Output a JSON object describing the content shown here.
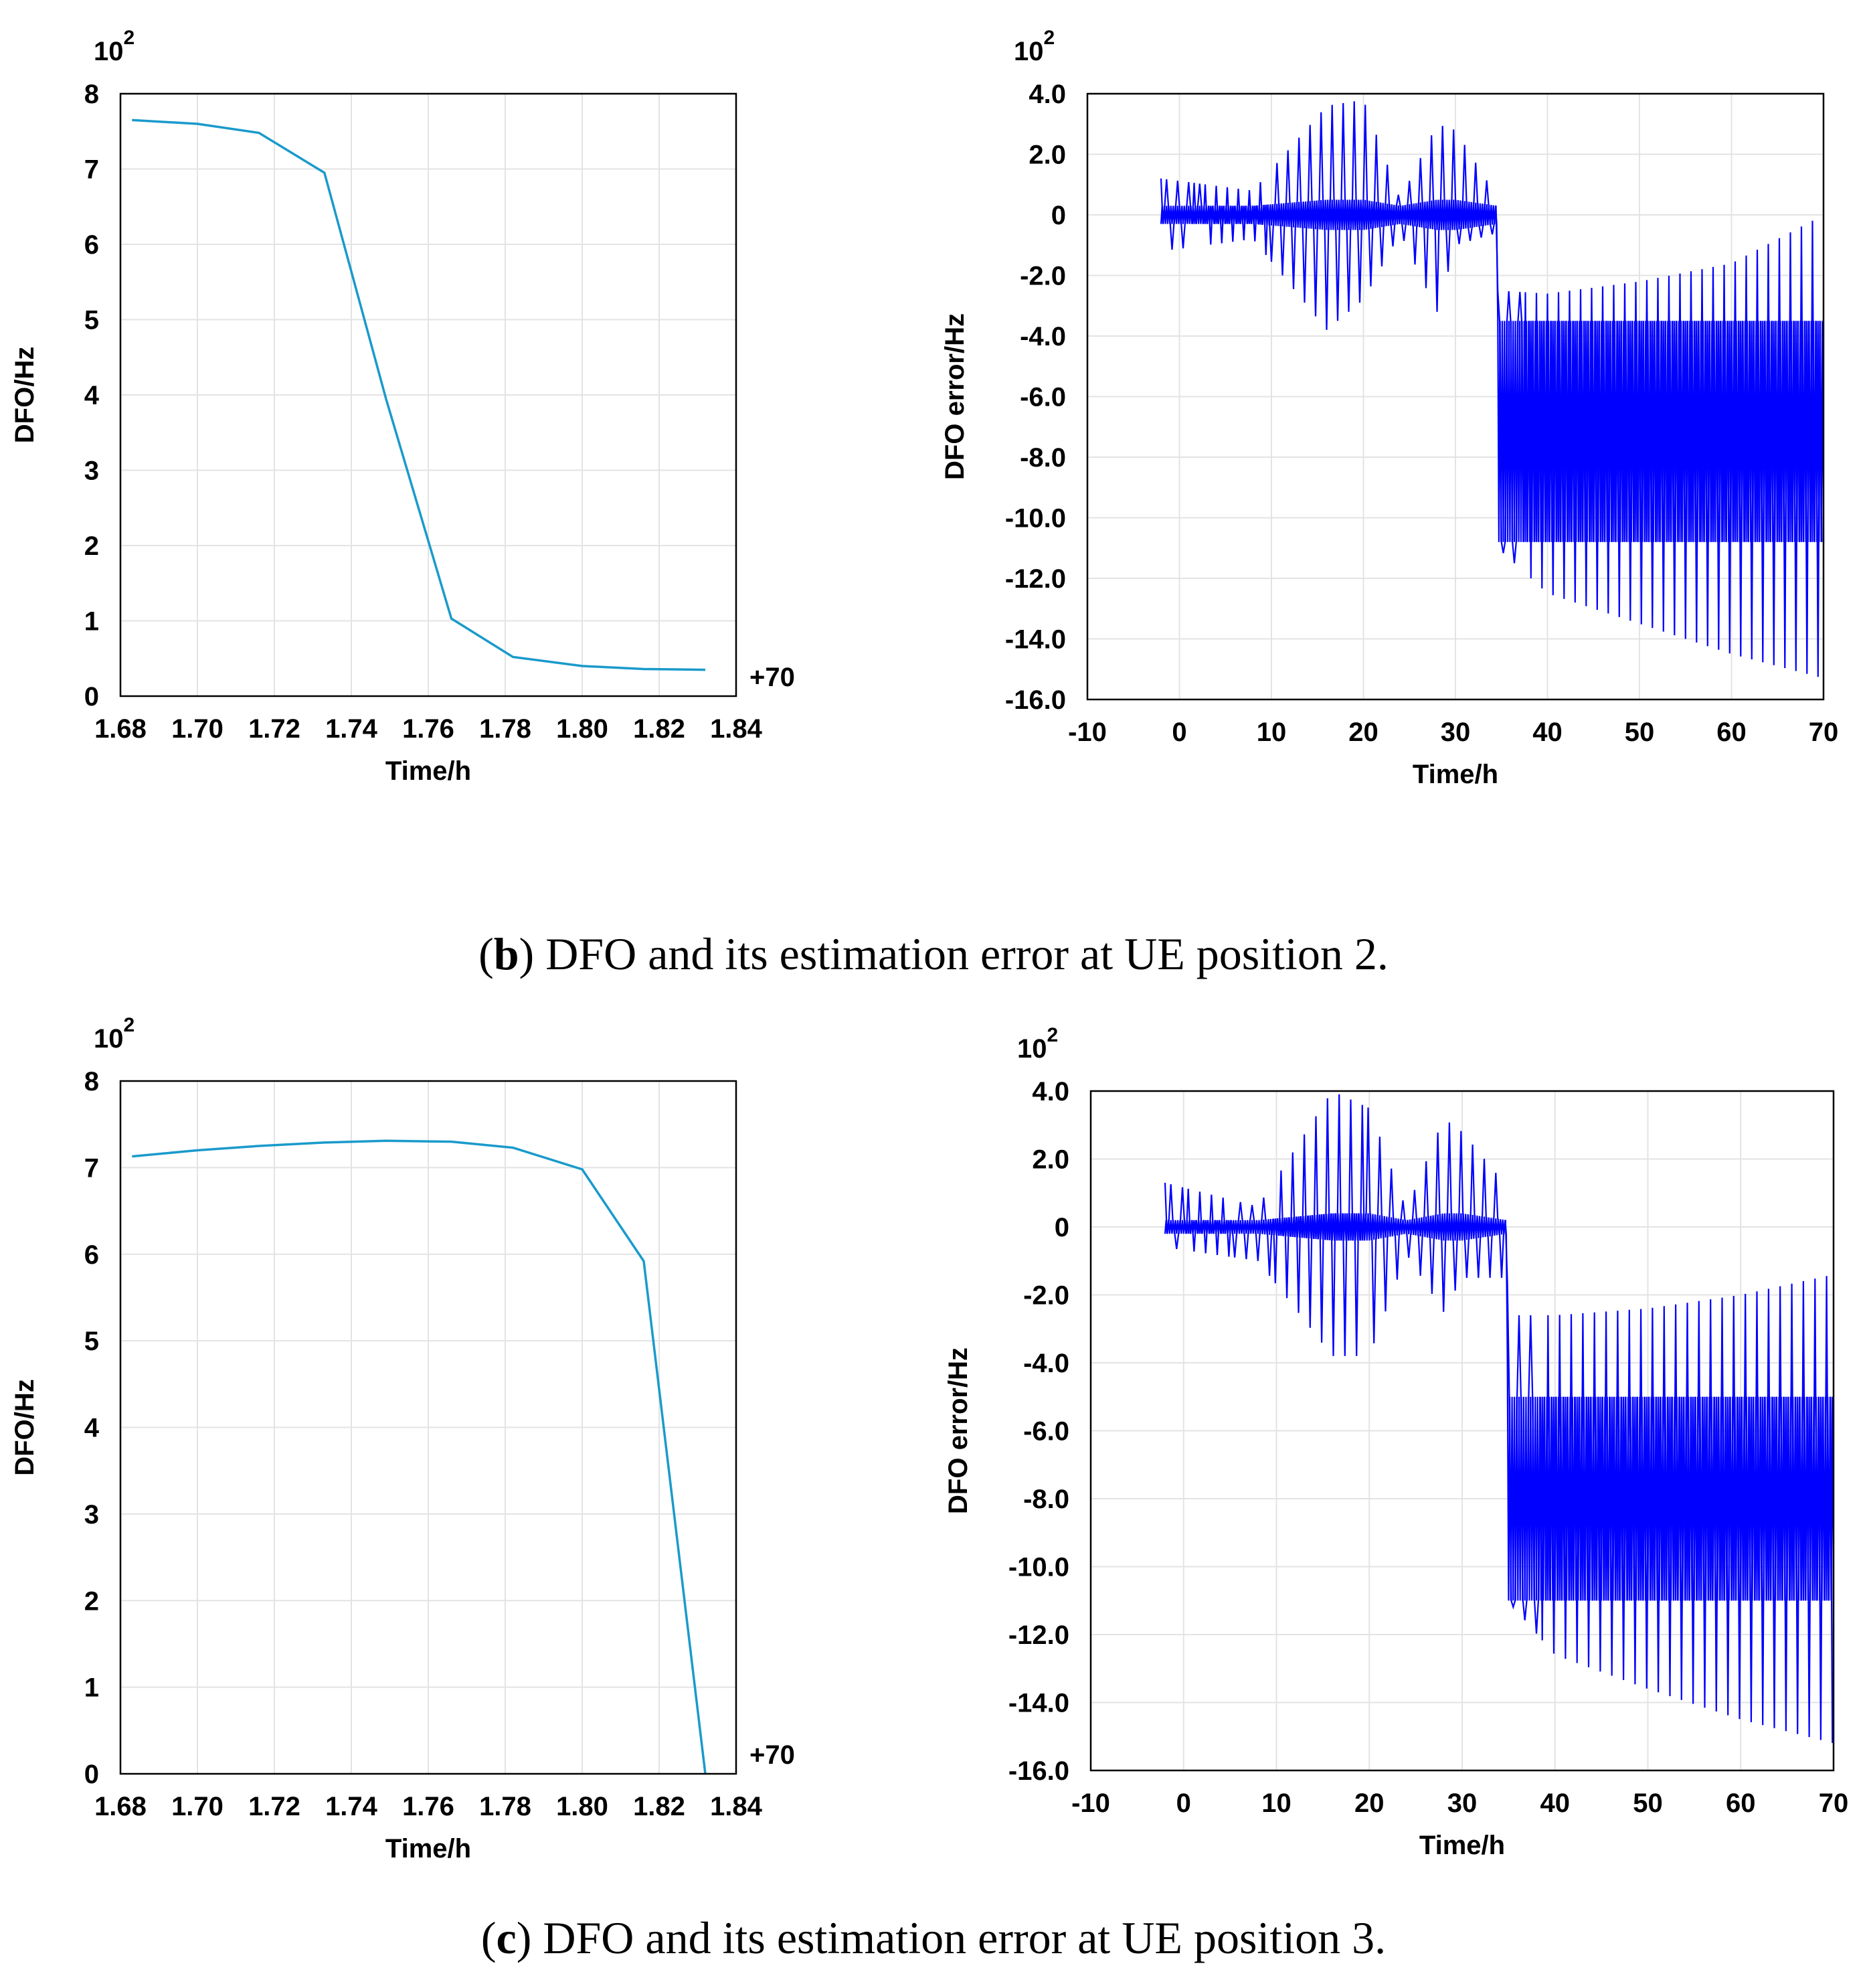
{
  "figure": {
    "captions": [
      {
        "open": "(",
        "letter": "b",
        "rest": ") DFO and its estimation error at UE position 2."
      },
      {
        "open": "(",
        "letter": "c",
        "rest": ") DFO and its estimation error at UE position 3."
      }
    ]
  },
  "chart_data": [
    {
      "id": "b-left",
      "type": "line",
      "xlabel": "Time/h",
      "ylabel": "DFO/Hz",
      "scale_label": {
        "base": "10",
        "exp": "2"
      },
      "offset_label": "+70",
      "xlim": [
        1.68,
        1.84
      ],
      "ylim": [
        0,
        8
      ],
      "xticks": [
        1.68,
        1.7,
        1.72,
        1.74,
        1.76,
        1.78,
        1.8,
        1.82,
        1.84
      ],
      "xtick_labels": [
        "1.68",
        "1.70",
        "1.72",
        "1.74",
        "1.76",
        "1.78",
        "1.80",
        "1.82",
        "1.84"
      ],
      "yticks": [
        0,
        1,
        2,
        3,
        4,
        5,
        6,
        7,
        8
      ],
      "ytick_labels": [
        "0",
        "1",
        "2",
        "3",
        "4",
        "5",
        "6",
        "7",
        "8"
      ],
      "grid": true,
      "color": "#1a9acb",
      "series": [
        {
          "name": "DFO",
          "x": [
            1.683,
            1.7,
            1.716,
            1.733,
            1.749,
            1.766,
            1.782,
            1.8,
            1.816,
            1.832
          ],
          "y": [
            7.65,
            7.6,
            7.48,
            6.95,
            3.95,
            1.03,
            0.52,
            0.4,
            0.36,
            0.35
          ]
        }
      ]
    },
    {
      "id": "b-right",
      "type": "line",
      "xlabel": "Time/h",
      "ylabel": "DFO error/Hz",
      "scale_label": {
        "base": "10",
        "exp": "2"
      },
      "xlim": [
        -10,
        70
      ],
      "ylim": [
        -16,
        4
      ],
      "xticks": [
        -10,
        0,
        10,
        20,
        30,
        40,
        50,
        60,
        70
      ],
      "xtick_labels": [
        "-10",
        "0",
        "10",
        "20",
        "30",
        "40",
        "50",
        "60",
        "70"
      ],
      "yticks": [
        4,
        2,
        0,
        -2,
        -4,
        -6,
        -8,
        -10,
        -12,
        -14,
        -16
      ],
      "ytick_labels": [
        "4.0",
        "2.0",
        "0",
        "-2.0",
        "-4.0",
        "-6.0",
        "-8.0",
        "-10.0",
        "-12.0",
        "-14.0",
        "-16.0"
      ],
      "grid": true,
      "color": "#0000ff",
      "series": [
        {
          "name": "DFO error",
          "pattern": "oscillating",
          "x_range": [
            -2,
            70
          ],
          "switch_x": 34.5,
          "period": 1.2,
          "envelope_x": [
            -2,
            8,
            16,
            20,
            24,
            28,
            30,
            34.5,
            34.6,
            40,
            50,
            60,
            70
          ],
          "upper": [
            1.2,
            0.8,
            3.6,
            3.8,
            0.5,
            3.0,
            2.8,
            0.6,
            -2.5,
            -2.6,
            -2.2,
            -1.6,
            0.0
          ],
          "lower": [
            -1.2,
            -0.8,
            -3.8,
            -2.8,
            -0.6,
            -3.2,
            -1.0,
            -0.6,
            -11.0,
            -12.5,
            -13.5,
            -14.5,
            -15.3
          ],
          "band_top": [
            0.3,
            0.3,
            0.5,
            0.5,
            0.3,
            0.5,
            0.5,
            0.3,
            -3.5,
            -3.5,
            -3.5,
            -3.5,
            -3.5
          ],
          "band_bottom": [
            -0.3,
            -0.3,
            -0.5,
            -0.5,
            -0.3,
            -0.5,
            -0.5,
            -0.3,
            -10.8,
            -10.8,
            -10.8,
            -10.8,
            -10.8
          ]
        }
      ]
    },
    {
      "id": "c-left",
      "type": "line",
      "xlabel": "Time/h",
      "ylabel": "DFO/Hz",
      "scale_label": {
        "base": "10",
        "exp": "2"
      },
      "offset_label": "+70",
      "xlim": [
        1.68,
        1.84
      ],
      "ylim": [
        0,
        8
      ],
      "xticks": [
        1.68,
        1.7,
        1.72,
        1.74,
        1.76,
        1.78,
        1.8,
        1.82,
        1.84
      ],
      "xtick_labels": [
        "1.68",
        "1.70",
        "1.72",
        "1.74",
        "1.76",
        "1.78",
        "1.80",
        "1.82",
        "1.84"
      ],
      "yticks": [
        0,
        1,
        2,
        3,
        4,
        5,
        6,
        7,
        8
      ],
      "ytick_labels": [
        "0",
        "1",
        "2",
        "3",
        "4",
        "5",
        "6",
        "7",
        "8"
      ],
      "grid": true,
      "color": "#1a9acb",
      "series": [
        {
          "name": "DFO",
          "x": [
            1.683,
            1.7,
            1.716,
            1.733,
            1.749,
            1.766,
            1.782,
            1.8,
            1.816,
            1.832
          ],
          "y": [
            7.13,
            7.2,
            7.25,
            7.29,
            7.31,
            7.3,
            7.23,
            6.98,
            5.92,
            0.0
          ]
        }
      ]
    },
    {
      "id": "c-right",
      "type": "line",
      "xlabel": "Time/h",
      "ylabel": "DFO error/Hz",
      "scale_label": {
        "base": "10",
        "exp": "2"
      },
      "xlim": [
        -10,
        70
      ],
      "ylim": [
        -16,
        4
      ],
      "xticks": [
        -10,
        0,
        10,
        20,
        30,
        40,
        50,
        60,
        70
      ],
      "xtick_labels": [
        "-10",
        "0",
        "10",
        "20",
        "30",
        "40",
        "50",
        "60",
        "70"
      ],
      "yticks": [
        4,
        2,
        0,
        -2,
        -4,
        -6,
        -8,
        -10,
        -12,
        -14,
        -16
      ],
      "ytick_labels": [
        "4.0",
        "2.0",
        "0",
        "-2.0",
        "-4.0",
        "-6.0",
        "-8.0",
        "-10.0",
        "-12.0",
        "-14.0",
        "-16.0"
      ],
      "grid": true,
      "color": "#0000ff",
      "series": [
        {
          "name": "DFO error",
          "pattern": "oscillating",
          "x_range": [
            -2,
            70
          ],
          "switch_x": 34.8,
          "period": 1.25,
          "envelope_x": [
            -2,
            8,
            16,
            20,
            24,
            28,
            30,
            34.8,
            34.9,
            40,
            50,
            60,
            70
          ],
          "upper": [
            1.3,
            0.6,
            4.0,
            3.5,
            0.5,
            3.2,
            2.8,
            1.2,
            -2.6,
            -2.6,
            -2.4,
            -2.0,
            -1.4
          ],
          "lower": [
            -0.6,
            -1.0,
            -3.8,
            -3.8,
            -0.8,
            -2.5,
            -1.5,
            -1.5,
            -11.0,
            -12.6,
            -13.6,
            -14.5,
            -15.2
          ],
          "band_top": [
            0.2,
            0.2,
            0.4,
            0.4,
            0.2,
            0.4,
            0.4,
            0.2,
            -5.0,
            -5.0,
            -5.0,
            -5.0,
            -5.0
          ],
          "band_bottom": [
            -0.2,
            -0.2,
            -0.4,
            -0.4,
            -0.2,
            -0.4,
            -0.4,
            -0.2,
            -11.0,
            -11.0,
            -11.0,
            -11.0,
            -11.0
          ]
        }
      ]
    }
  ]
}
